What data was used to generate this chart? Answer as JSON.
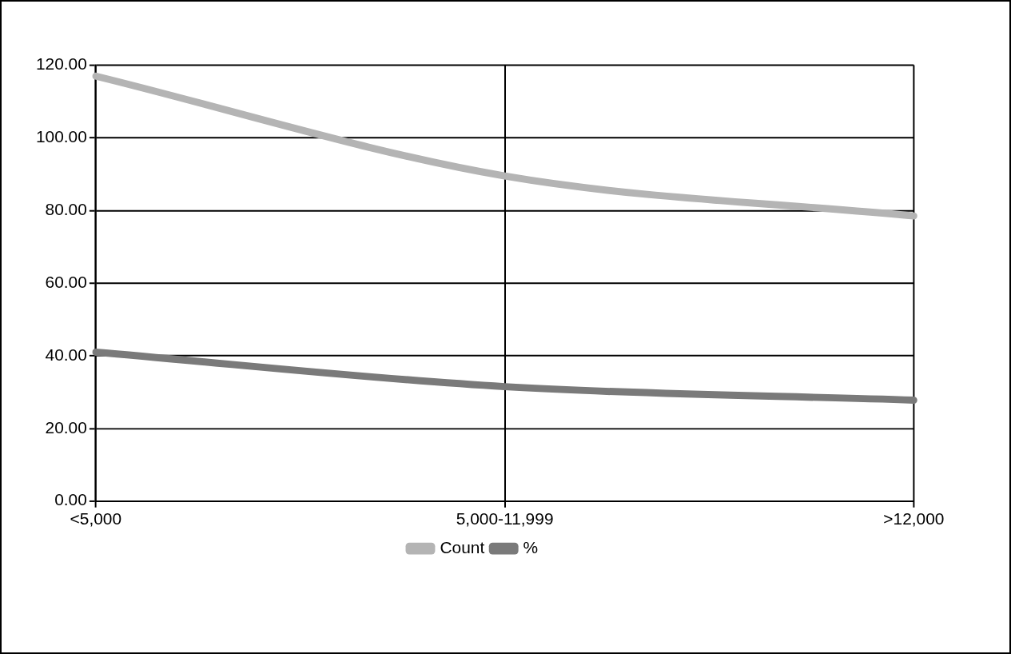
{
  "chart_data": {
    "type": "line",
    "categories": [
      "<5,000",
      "5,000-11,999",
      ">12,000"
    ],
    "series": [
      {
        "name": "Count",
        "color": "#b4b4b4",
        "values": [
          117,
          89.5,
          78.5
        ]
      },
      {
        "name": "%",
        "color": "#7a7a7a",
        "values": [
          41,
          31.5,
          27.8
        ]
      }
    ],
    "ylim": [
      0,
      120
    ],
    "yticks": [
      {
        "value": 0,
        "label": "0.00"
      },
      {
        "value": 20,
        "label": "20.00"
      },
      {
        "value": 40,
        "label": "40.00"
      },
      {
        "value": 60,
        "label": "60.00"
      },
      {
        "value": 80,
        "label": "80.00"
      },
      {
        "value": 100,
        "label": "100.00"
      },
      {
        "value": 120,
        "label": "120.00"
      }
    ],
    "grid": true,
    "legend": "bottom",
    "marker": "none",
    "line_style": "solid"
  }
}
